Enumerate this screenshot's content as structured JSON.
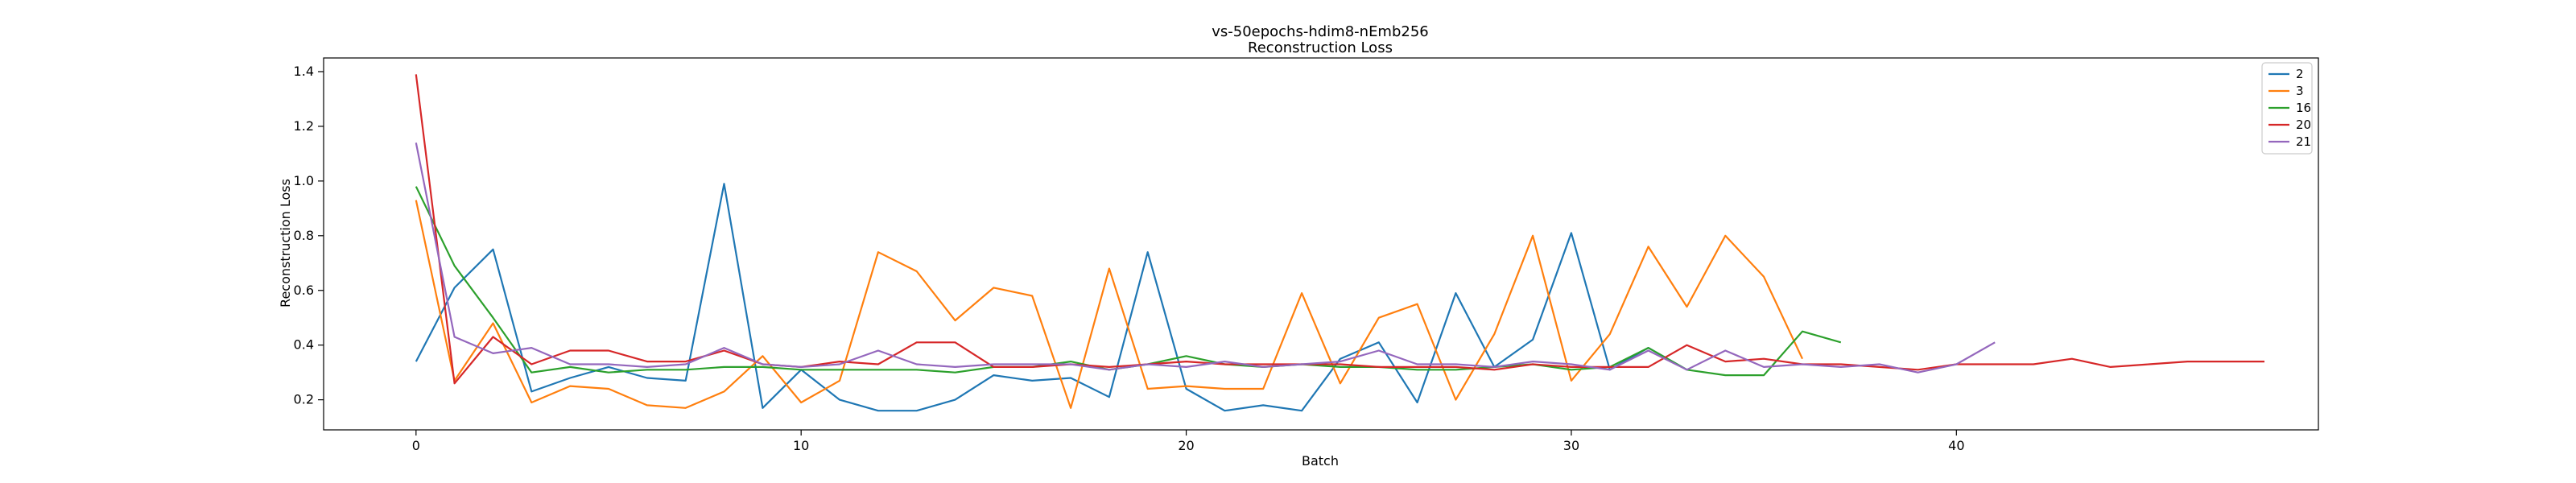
{
  "chart_data": {
    "type": "line",
    "title": "vs-50epochs-hdim8-nEmb256",
    "subtitle": "Reconstruction Loss",
    "xlabel": "Batch",
    "ylabel": "Reconstruction Loss",
    "xlim": [
      -2.4,
      49.4
    ],
    "ylim": [
      0.09,
      1.45
    ],
    "xticks": [
      0,
      10,
      20,
      30,
      40
    ],
    "yticks": [
      0.2,
      0.4,
      0.6,
      0.8,
      1.0,
      1.2,
      1.4
    ],
    "grid": false,
    "legend_position": "top-right",
    "series": [
      {
        "name": "2",
        "color": "#1f77b4",
        "values": [
          0.34,
          0.61,
          0.75,
          0.23,
          0.28,
          0.32,
          0.28,
          0.27,
          0.99,
          0.17,
          0.31,
          0.2,
          0.16,
          0.16,
          0.2,
          0.29,
          0.27,
          0.28,
          0.21,
          0.74,
          0.24,
          0.16,
          0.18,
          0.16,
          0.35,
          0.41,
          0.19,
          0.59,
          0.32,
          0.42,
          0.81,
          0.31,
          0.39,
          0.31
        ]
      },
      {
        "name": "3",
        "color": "#ff7f0e",
        "values": [
          0.93,
          0.27,
          0.48,
          0.19,
          0.25,
          0.24,
          0.18,
          0.17,
          0.23,
          0.36,
          0.19,
          0.27,
          0.74,
          0.67,
          0.49,
          0.61,
          0.58,
          0.17,
          0.68,
          0.24,
          0.25,
          0.24,
          0.24,
          0.59,
          0.26,
          0.5,
          0.55,
          0.2,
          0.44,
          0.8,
          0.27,
          0.44,
          0.76,
          0.54,
          0.8,
          0.65,
          0.35
        ]
      },
      {
        "name": "16",
        "color": "#2ca02c",
        "values": [
          0.98,
          0.69,
          0.5,
          0.3,
          0.32,
          0.3,
          0.31,
          0.31,
          0.32,
          0.32,
          0.31,
          0.31,
          0.31,
          0.31,
          0.3,
          0.32,
          0.32,
          0.34,
          0.31,
          0.33,
          0.36,
          0.33,
          0.32,
          0.33,
          0.32,
          0.32,
          0.31,
          0.31,
          0.32,
          0.33,
          0.31,
          0.32,
          0.39,
          0.31,
          0.29,
          0.29,
          0.45,
          0.41
        ]
      },
      {
        "name": "20",
        "color": "#d62728",
        "values": [
          1.39,
          0.26,
          0.43,
          0.33,
          0.38,
          0.38,
          0.34,
          0.34,
          0.38,
          0.33,
          0.32,
          0.34,
          0.33,
          0.41,
          0.41,
          0.32,
          0.32,
          0.33,
          0.32,
          0.33,
          0.34,
          0.33,
          0.33,
          0.33,
          0.33,
          0.32,
          0.32,
          0.32,
          0.31,
          0.33,
          0.32,
          0.32,
          0.32,
          0.4,
          0.34,
          0.35,
          0.33,
          0.33,
          0.32,
          0.31,
          0.33,
          0.33,
          0.33,
          0.35,
          0.32,
          0.33,
          0.34,
          0.34,
          0.34
        ]
      },
      {
        "name": "21",
        "color": "#9467bd",
        "values": [
          1.14,
          0.43,
          0.37,
          0.39,
          0.33,
          0.33,
          0.32,
          0.33,
          0.39,
          0.33,
          0.32,
          0.33,
          0.38,
          0.33,
          0.32,
          0.33,
          0.33,
          0.33,
          0.31,
          0.33,
          0.32,
          0.34,
          0.32,
          0.33,
          0.34,
          0.38,
          0.33,
          0.33,
          0.32,
          0.34,
          0.33,
          0.31,
          0.38,
          0.31,
          0.38,
          0.32,
          0.33,
          0.32,
          0.33,
          0.3,
          0.33,
          0.41
        ]
      }
    ]
  }
}
